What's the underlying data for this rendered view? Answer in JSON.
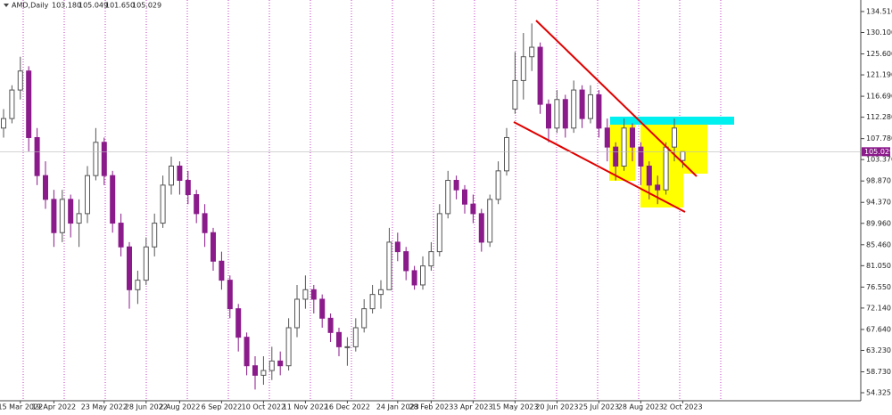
{
  "chart_data": {
    "type": "candlestick",
    "title": "AMD,Daily",
    "header_values": [
      "103.180",
      "105.049",
      "101.650",
      "105.029"
    ],
    "last_price_label": "105.029",
    "up_color": "#555555",
    "down_color": "#8b1a8b",
    "ylim": [
      52.64,
      136.0
    ],
    "yticks": [
      {
        "value": 134.51,
        "label": "134.510"
      },
      {
        "value": 130.1,
        "label": "130.100"
      },
      {
        "value": 125.6,
        "label": "125.600"
      },
      {
        "value": 121.19,
        "label": "121.190"
      },
      {
        "value": 116.69,
        "label": "116.690"
      },
      {
        "value": 112.28,
        "label": "112.280"
      },
      {
        "value": 107.78,
        "label": "107.780"
      },
      {
        "value": 103.37,
        "label": "103.370"
      },
      {
        "value": 98.87,
        "label": "98.870"
      },
      {
        "value": 94.37,
        "label": "94.370"
      },
      {
        "value": 89.96,
        "label": "89.960"
      },
      {
        "value": 85.46,
        "label": "85.460"
      },
      {
        "value": 81.05,
        "label": "81.050"
      },
      {
        "value": 76.55,
        "label": "76.550"
      },
      {
        "value": 72.14,
        "label": "72.140"
      },
      {
        "value": 67.64,
        "label": "67.640"
      },
      {
        "value": 63.23,
        "label": "63.230"
      },
      {
        "value": 58.73,
        "label": "58.730"
      },
      {
        "value": 54.325,
        "label": "54.325"
      }
    ],
    "categories": [
      null,
      null,
      "15 Mar 2022",
      null,
      null,
      null,
      "19 Apr 2022",
      null,
      null,
      null,
      null,
      null,
      "23 May 2022",
      null,
      null,
      null,
      null,
      "28 Jun 2022",
      null,
      null,
      null,
      "2 Aug 2022",
      null,
      null,
      null,
      null,
      "6 Sep 2022",
      null,
      null,
      null,
      null,
      "10 Oct 2022",
      null,
      null,
      null,
      null,
      "11 Nov 2022",
      null,
      null,
      null,
      null,
      "16 Dec 2022",
      null,
      null,
      null,
      null,
      null,
      "24 Jan 2023",
      null,
      null,
      null,
      "28 Feb 2023",
      null,
      null,
      null,
      null,
      "3 Apr 2023",
      null,
      null,
      null,
      null,
      "15 May 2023",
      null,
      null,
      null,
      null,
      "20 Jun 2023",
      null,
      null,
      null,
      null,
      "25 Jul 2023",
      null,
      null,
      null,
      null,
      "28 Aug 2023",
      null,
      null,
      null,
      null,
      "2 Oct 2023"
    ],
    "candles": [
      [
        110,
        114,
        108,
        112
      ],
      [
        112,
        119,
        111,
        118
      ],
      [
        118,
        125,
        116,
        122
      ],
      [
        122,
        123,
        105,
        108
      ],
      [
        108,
        110,
        98,
        100
      ],
      [
        100,
        103,
        93,
        95
      ],
      [
        95,
        97,
        85,
        88
      ],
      [
        88,
        97,
        86,
        95
      ],
      [
        95,
        96,
        87,
        90
      ],
      [
        90,
        95,
        85,
        92
      ],
      [
        92,
        102,
        90,
        100
      ],
      [
        100,
        110,
        99,
        107
      ],
      [
        107,
        108,
        98,
        100
      ],
      [
        100,
        101,
        88,
        90
      ],
      [
        90,
        92,
        83,
        85
      ],
      [
        85,
        86,
        72,
        76
      ],
      [
        76,
        80,
        73,
        78
      ],
      [
        78,
        87,
        77,
        85
      ],
      [
        85,
        92,
        83,
        90
      ],
      [
        90,
        100,
        89,
        98
      ],
      [
        98,
        104,
        96,
        102
      ],
      [
        102,
        103,
        96,
        99
      ],
      [
        99,
        101,
        94,
        96
      ],
      [
        96,
        97,
        90,
        92
      ],
      [
        92,
        94,
        85,
        88
      ],
      [
        88,
        89,
        80,
        82
      ],
      [
        82,
        84,
        76,
        78
      ],
      [
        78,
        79,
        70,
        72
      ],
      [
        72,
        73,
        63,
        66
      ],
      [
        66,
        67,
        58,
        60
      ],
      [
        60,
        62,
        55,
        58
      ],
      [
        58,
        62,
        56,
        59
      ],
      [
        59,
        64,
        57,
        61
      ],
      [
        61,
        63,
        58,
        60
      ],
      [
        60,
        70,
        59,
        68
      ],
      [
        68,
        77,
        66,
        74
      ],
      [
        74,
        79,
        72,
        76
      ],
      [
        76,
        77,
        71,
        74
      ],
      [
        74,
        75,
        68,
        70
      ],
      [
        70,
        71,
        65,
        67
      ],
      [
        67,
        68,
        62,
        64
      ],
      [
        64,
        66,
        60,
        64
      ],
      [
        64,
        70,
        63,
        68
      ],
      [
        68,
        74,
        67,
        72
      ],
      [
        72,
        77,
        71,
        75
      ],
      [
        75,
        78,
        72,
        76
      ],
      [
        76,
        89,
        76,
        86
      ],
      [
        86,
        88,
        82,
        84
      ],
      [
        84,
        85,
        78,
        80
      ],
      [
        80,
        81,
        76,
        77
      ],
      [
        77,
        83,
        76,
        81
      ],
      [
        81,
        86,
        80,
        84
      ],
      [
        84,
        94,
        83,
        92
      ],
      [
        92,
        101,
        91,
        99
      ],
      [
        99,
        100,
        95,
        97
      ],
      [
        97,
        98,
        92,
        94
      ],
      [
        94,
        96,
        90,
        92
      ],
      [
        92,
        93,
        84,
        86
      ],
      [
        86,
        96,
        85,
        95
      ],
      [
        95,
        103,
        94,
        101
      ],
      [
        101,
        110,
        100,
        108
      ],
      [
        114,
        126,
        113,
        120
      ],
      [
        120,
        130,
        116,
        125
      ],
      [
        125,
        132,
        122,
        127
      ],
      [
        127,
        128,
        113,
        115
      ],
      [
        115,
        116,
        107,
        110
      ],
      [
        110,
        118,
        109,
        116
      ],
      [
        116,
        117,
        108,
        110
      ],
      [
        110,
        120,
        109,
        118
      ],
      [
        118,
        119,
        110,
        112
      ],
      [
        112,
        119,
        111,
        117
      ],
      [
        117,
        118,
        108,
        110
      ],
      [
        110,
        112,
        103,
        106
      ],
      [
        106,
        107,
        99,
        102
      ],
      [
        102,
        112,
        101,
        110
      ],
      [
        110,
        111,
        103,
        106
      ],
      [
        106,
        107,
        98,
        102
      ],
      [
        102,
        103,
        95,
        98
      ],
      [
        98,
        100,
        94,
        97
      ],
      [
        97,
        107,
        96,
        106
      ],
      [
        106,
        112,
        103,
        110
      ],
      [
        103.18,
        105.049,
        101.65,
        105.029
      ]
    ]
  }
}
